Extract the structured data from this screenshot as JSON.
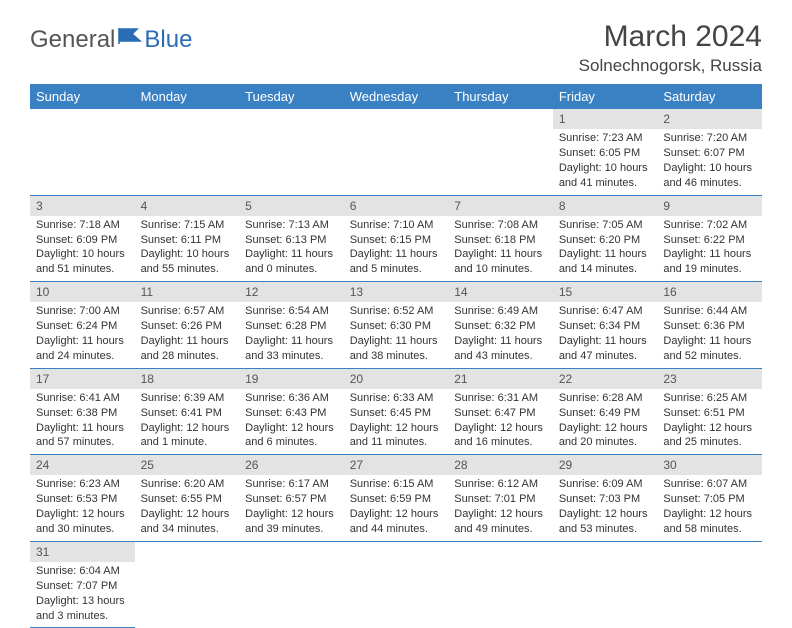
{
  "logo": {
    "general": "General",
    "blue": "Blue"
  },
  "title": "March 2024",
  "location": "Solnechnogorsk, Russia",
  "colors": {
    "header_bg": "#3a81c3",
    "header_text": "#ffffff",
    "daynum_bg": "#e3e3e3",
    "cell_border": "#3a81c3",
    "logo_blue": "#2a6db5"
  },
  "day_headers": [
    "Sunday",
    "Monday",
    "Tuesday",
    "Wednesday",
    "Thursday",
    "Friday",
    "Saturday"
  ],
  "weeks": [
    [
      null,
      null,
      null,
      null,
      null,
      {
        "n": "1",
        "sr": "Sunrise: 7:23 AM",
        "ss": "Sunset: 6:05 PM",
        "d1": "Daylight: 10 hours",
        "d2": "and 41 minutes."
      },
      {
        "n": "2",
        "sr": "Sunrise: 7:20 AM",
        "ss": "Sunset: 6:07 PM",
        "d1": "Daylight: 10 hours",
        "d2": "and 46 minutes."
      }
    ],
    [
      {
        "n": "3",
        "sr": "Sunrise: 7:18 AM",
        "ss": "Sunset: 6:09 PM",
        "d1": "Daylight: 10 hours",
        "d2": "and 51 minutes."
      },
      {
        "n": "4",
        "sr": "Sunrise: 7:15 AM",
        "ss": "Sunset: 6:11 PM",
        "d1": "Daylight: 10 hours",
        "d2": "and 55 minutes."
      },
      {
        "n": "5",
        "sr": "Sunrise: 7:13 AM",
        "ss": "Sunset: 6:13 PM",
        "d1": "Daylight: 11 hours",
        "d2": "and 0 minutes."
      },
      {
        "n": "6",
        "sr": "Sunrise: 7:10 AM",
        "ss": "Sunset: 6:15 PM",
        "d1": "Daylight: 11 hours",
        "d2": "and 5 minutes."
      },
      {
        "n": "7",
        "sr": "Sunrise: 7:08 AM",
        "ss": "Sunset: 6:18 PM",
        "d1": "Daylight: 11 hours",
        "d2": "and 10 minutes."
      },
      {
        "n": "8",
        "sr": "Sunrise: 7:05 AM",
        "ss": "Sunset: 6:20 PM",
        "d1": "Daylight: 11 hours",
        "d2": "and 14 minutes."
      },
      {
        "n": "9",
        "sr": "Sunrise: 7:02 AM",
        "ss": "Sunset: 6:22 PM",
        "d1": "Daylight: 11 hours",
        "d2": "and 19 minutes."
      }
    ],
    [
      {
        "n": "10",
        "sr": "Sunrise: 7:00 AM",
        "ss": "Sunset: 6:24 PM",
        "d1": "Daylight: 11 hours",
        "d2": "and 24 minutes."
      },
      {
        "n": "11",
        "sr": "Sunrise: 6:57 AM",
        "ss": "Sunset: 6:26 PM",
        "d1": "Daylight: 11 hours",
        "d2": "and 28 minutes."
      },
      {
        "n": "12",
        "sr": "Sunrise: 6:54 AM",
        "ss": "Sunset: 6:28 PM",
        "d1": "Daylight: 11 hours",
        "d2": "and 33 minutes."
      },
      {
        "n": "13",
        "sr": "Sunrise: 6:52 AM",
        "ss": "Sunset: 6:30 PM",
        "d1": "Daylight: 11 hours",
        "d2": "and 38 minutes."
      },
      {
        "n": "14",
        "sr": "Sunrise: 6:49 AM",
        "ss": "Sunset: 6:32 PM",
        "d1": "Daylight: 11 hours",
        "d2": "and 43 minutes."
      },
      {
        "n": "15",
        "sr": "Sunrise: 6:47 AM",
        "ss": "Sunset: 6:34 PM",
        "d1": "Daylight: 11 hours",
        "d2": "and 47 minutes."
      },
      {
        "n": "16",
        "sr": "Sunrise: 6:44 AM",
        "ss": "Sunset: 6:36 PM",
        "d1": "Daylight: 11 hours",
        "d2": "and 52 minutes."
      }
    ],
    [
      {
        "n": "17",
        "sr": "Sunrise: 6:41 AM",
        "ss": "Sunset: 6:38 PM",
        "d1": "Daylight: 11 hours",
        "d2": "and 57 minutes."
      },
      {
        "n": "18",
        "sr": "Sunrise: 6:39 AM",
        "ss": "Sunset: 6:41 PM",
        "d1": "Daylight: 12 hours",
        "d2": "and 1 minute."
      },
      {
        "n": "19",
        "sr": "Sunrise: 6:36 AM",
        "ss": "Sunset: 6:43 PM",
        "d1": "Daylight: 12 hours",
        "d2": "and 6 minutes."
      },
      {
        "n": "20",
        "sr": "Sunrise: 6:33 AM",
        "ss": "Sunset: 6:45 PM",
        "d1": "Daylight: 12 hours",
        "d2": "and 11 minutes."
      },
      {
        "n": "21",
        "sr": "Sunrise: 6:31 AM",
        "ss": "Sunset: 6:47 PM",
        "d1": "Daylight: 12 hours",
        "d2": "and 16 minutes."
      },
      {
        "n": "22",
        "sr": "Sunrise: 6:28 AM",
        "ss": "Sunset: 6:49 PM",
        "d1": "Daylight: 12 hours",
        "d2": "and 20 minutes."
      },
      {
        "n": "23",
        "sr": "Sunrise: 6:25 AM",
        "ss": "Sunset: 6:51 PM",
        "d1": "Daylight: 12 hours",
        "d2": "and 25 minutes."
      }
    ],
    [
      {
        "n": "24",
        "sr": "Sunrise: 6:23 AM",
        "ss": "Sunset: 6:53 PM",
        "d1": "Daylight: 12 hours",
        "d2": "and 30 minutes."
      },
      {
        "n": "25",
        "sr": "Sunrise: 6:20 AM",
        "ss": "Sunset: 6:55 PM",
        "d1": "Daylight: 12 hours",
        "d2": "and 34 minutes."
      },
      {
        "n": "26",
        "sr": "Sunrise: 6:17 AM",
        "ss": "Sunset: 6:57 PM",
        "d1": "Daylight: 12 hours",
        "d2": "and 39 minutes."
      },
      {
        "n": "27",
        "sr": "Sunrise: 6:15 AM",
        "ss": "Sunset: 6:59 PM",
        "d1": "Daylight: 12 hours",
        "d2": "and 44 minutes."
      },
      {
        "n": "28",
        "sr": "Sunrise: 6:12 AM",
        "ss": "Sunset: 7:01 PM",
        "d1": "Daylight: 12 hours",
        "d2": "and 49 minutes."
      },
      {
        "n": "29",
        "sr": "Sunrise: 6:09 AM",
        "ss": "Sunset: 7:03 PM",
        "d1": "Daylight: 12 hours",
        "d2": "and 53 minutes."
      },
      {
        "n": "30",
        "sr": "Sunrise: 6:07 AM",
        "ss": "Sunset: 7:05 PM",
        "d1": "Daylight: 12 hours",
        "d2": "and 58 minutes."
      }
    ],
    [
      {
        "n": "31",
        "sr": "Sunrise: 6:04 AM",
        "ss": "Sunset: 7:07 PM",
        "d1": "Daylight: 13 hours",
        "d2": "and 3 minutes."
      },
      null,
      null,
      null,
      null,
      null,
      null
    ]
  ]
}
